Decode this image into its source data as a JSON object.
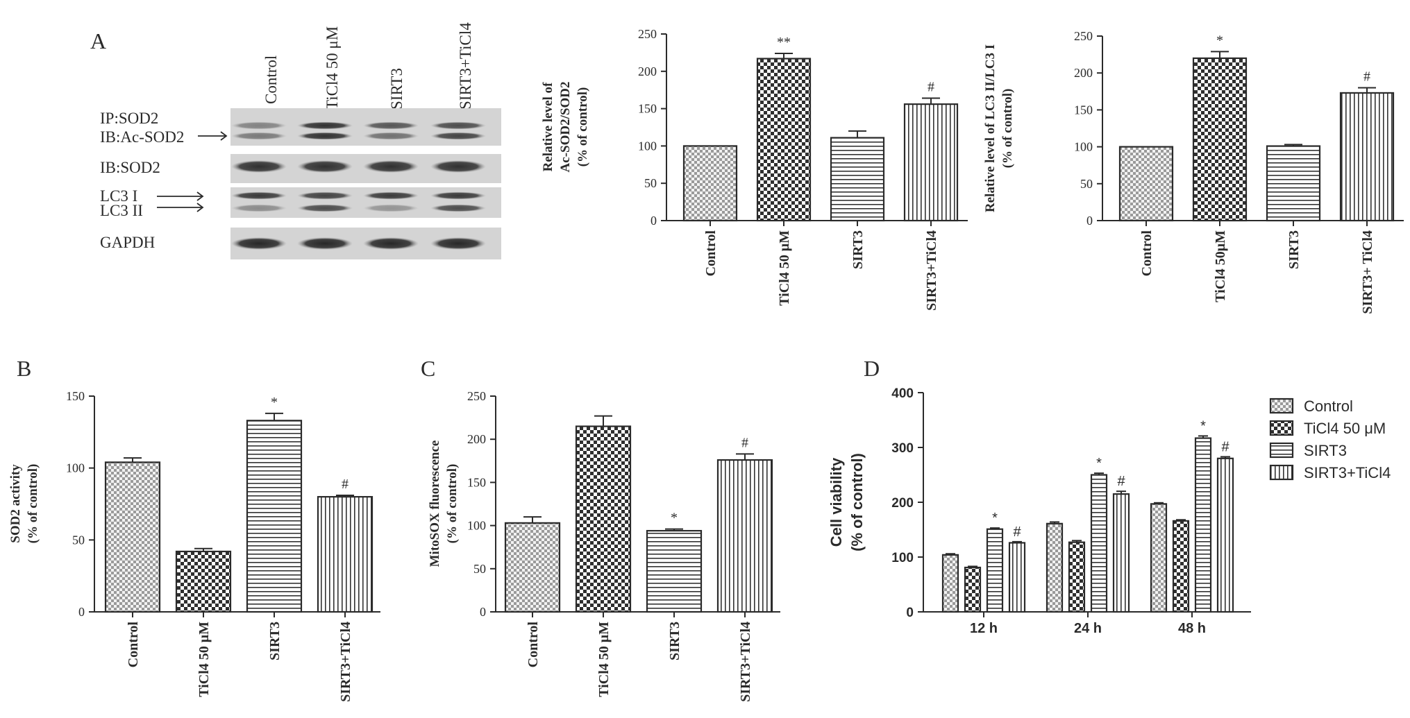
{
  "figure": {
    "panel_letters": [
      "A",
      "B",
      "C",
      "D"
    ]
  },
  "blot": {
    "columns": [
      "Control",
      "TiCl4 50 μM",
      "SIRT3",
      "SIRT3+TiCl4"
    ],
    "row_labels": [
      "IP:SOD2",
      "IB:Ac-SOD2",
      "IB:SOD2",
      "LC3 I",
      "LC3 II",
      "GAPDH"
    ]
  },
  "colors": {
    "axis": "#2a2a2a",
    "bar_fill": "#ffffff",
    "pattern_ink": "#3a3a3a"
  },
  "patterns": [
    "fine-checker",
    "coarse-checker",
    "horizontal-lines",
    "vertical-lines"
  ],
  "chart_data": [
    {
      "id": "A1",
      "type": "bar",
      "categories": [
        "Control",
        "TiCl4 50 μM",
        "SIRT3",
        "SIRT3+TiCl4"
      ],
      "values": [
        100,
        217,
        111,
        156
      ],
      "errors": [
        0,
        7,
        9,
        8
      ],
      "significance": [
        "",
        "**",
        "",
        "#"
      ],
      "ylabel": [
        "Relative level of",
        "Ac-SOD2/SOD2",
        "(% of control)"
      ],
      "ylim": [
        0,
        250
      ],
      "yticks": [
        0,
        50,
        100,
        150,
        200,
        250
      ]
    },
    {
      "id": "A2",
      "type": "bar",
      "categories": [
        "Control",
        "TiCl4 50μM",
        "SIRT3",
        "SIRT3+ TiCl4"
      ],
      "values": [
        100,
        220,
        101,
        173
      ],
      "errors": [
        0,
        9,
        2,
        7
      ],
      "significance": [
        "",
        "*",
        "",
        "#"
      ],
      "ylabel": [
        "Relative level of LC3 II/LC3 I",
        "(% of control)"
      ],
      "ylim": [
        0,
        250
      ],
      "yticks": [
        0,
        50,
        100,
        150,
        200,
        250
      ]
    },
    {
      "id": "B",
      "type": "bar",
      "categories": [
        "Control",
        "TiCl4 50 μM",
        "SIRT3",
        "SIRT3+TiCl4"
      ],
      "values": [
        104,
        42,
        133,
        80
      ],
      "errors": [
        3,
        2,
        5,
        1
      ],
      "significance": [
        "",
        "",
        "*",
        "#"
      ],
      "ylabel": [
        "SOD2 activity",
        "(% of control)"
      ],
      "ylim": [
        0,
        150
      ],
      "yticks": [
        0,
        50,
        100,
        150
      ]
    },
    {
      "id": "C",
      "type": "bar",
      "categories": [
        "Control",
        "TiCl4 50 μM",
        "SIRT3",
        "SIRT3+TiCl4"
      ],
      "values": [
        103,
        215,
        94,
        176
      ],
      "errors": [
        7,
        12,
        2,
        7
      ],
      "significance": [
        "",
        "",
        "*",
        "#"
      ],
      "ylabel": [
        "MitoSOX fluorescence",
        "(% of control)"
      ],
      "ylim": [
        0,
        250
      ],
      "yticks": [
        0,
        50,
        100,
        150,
        200,
        250
      ]
    },
    {
      "id": "D",
      "type": "bar",
      "categories": [
        "12 h",
        "24 h",
        "48 h"
      ],
      "series": [
        {
          "name": "Control",
          "values": [
            104,
            161,
            197
          ],
          "errors": [
            2,
            3,
            2
          ],
          "significance": [
            "",
            "",
            ""
          ]
        },
        {
          "name": "TiCl4 50 μM",
          "values": [
            81,
            127,
            166
          ],
          "errors": [
            2,
            3,
            2
          ],
          "significance": [
            "",
            "",
            ""
          ]
        },
        {
          "name": "SIRT3",
          "values": [
            151,
            250,
            317
          ],
          "errors": [
            2,
            3,
            4
          ],
          "significance": [
            "*",
            "*",
            "*"
          ]
        },
        {
          "name": "SIRT3+TiCl4",
          "values": [
            126,
            215,
            280
          ],
          "errors": [
            2,
            5,
            3
          ],
          "significance": [
            "#",
            "#",
            "#"
          ]
        }
      ],
      "ylabel": [
        "Cell viability",
        "(% of control)"
      ],
      "ylim": [
        0,
        400
      ],
      "yticks": [
        0,
        100,
        200,
        300,
        400
      ],
      "legend": "right"
    }
  ]
}
